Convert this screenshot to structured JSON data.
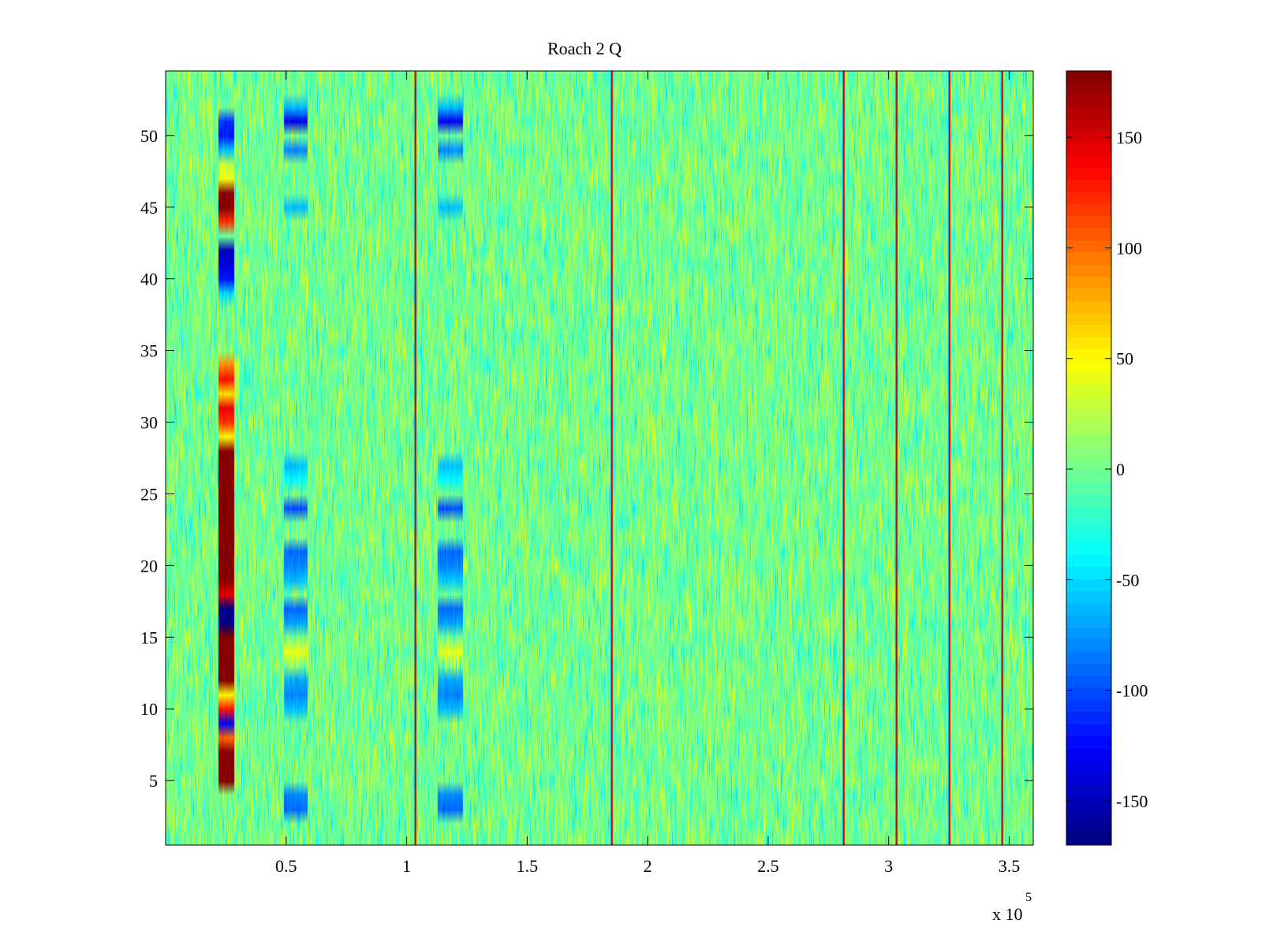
{
  "chart_data": {
    "type": "heatmap",
    "title": "Roach 2 Q",
    "xlabel": "",
    "ylabel": "",
    "x_multiplier_label": "x 10",
    "x_multiplier_exponent": "5",
    "xlim": [
      0,
      360000
    ],
    "ylim": [
      0.5,
      54.5
    ],
    "rows": 54,
    "x_ticks": [
      {
        "value": 0.5,
        "label": "0.5"
      },
      {
        "value": 1,
        "label": "1"
      },
      {
        "value": 1.5,
        "label": "1.5"
      },
      {
        "value": 2,
        "label": "2"
      },
      {
        "value": 2.5,
        "label": "2.5"
      },
      {
        "value": 3,
        "label": "3"
      },
      {
        "value": 3.5,
        "label": "3.5"
      }
    ],
    "y_ticks": [
      {
        "value": 5,
        "label": "5"
      },
      {
        "value": 10,
        "label": "10"
      },
      {
        "value": 15,
        "label": "15"
      },
      {
        "value": 20,
        "label": "20"
      },
      {
        "value": 25,
        "label": "25"
      },
      {
        "value": 30,
        "label": "30"
      },
      {
        "value": 35,
        "label": "35"
      },
      {
        "value": 40,
        "label": "40"
      },
      {
        "value": 45,
        "label": "45"
      },
      {
        "value": 50,
        "label": "50"
      }
    ],
    "colorbar": {
      "colormap": "jet",
      "range": [
        -170,
        180
      ],
      "ticks": [
        {
          "value": 150,
          "label": "150"
        },
        {
          "value": 100,
          "label": "100"
        },
        {
          "value": 50,
          "label": "50"
        },
        {
          "value": 0,
          "label": "0"
        },
        {
          "value": -50,
          "label": "-50"
        },
        {
          "value": -100,
          "label": "-100"
        },
        {
          "value": -150,
          "label": "-150"
        }
      ]
    },
    "background": {
      "value_range": [
        -40,
        40
      ]
    },
    "vertical_lines_x": [
      103500,
      185000,
      281000,
      303000,
      325000,
      347000
    ],
    "column_stripes": [
      {
        "x_range": [
          22000,
          28500
        ],
        "rows": {
          "51": -110,
          "50": -120,
          "49": -60,
          "48": 30,
          "47": 40,
          "46": 180,
          "45": 180,
          "44": 120,
          "43": 0,
          "42": -150,
          "41": -140,
          "40": -120,
          "39": -50,
          "34": 90,
          "33": 130,
          "32": 60,
          "31": 140,
          "30": 120,
          "29": 50,
          "28": 180,
          "27": 180,
          "26": 180,
          "25": 180,
          "24": 180,
          "23": 180,
          "22": 180,
          "21": 180,
          "20": 180,
          "19": 180,
          "18": 150,
          "17": -170,
          "16": -170,
          "15": 180,
          "14": 180,
          "13": 180,
          "12": 180,
          "11": 50,
          "10": 130,
          "9": -130,
          "8": 100,
          "7": 180,
          "6": 180,
          "5": 180
        }
      },
      {
        "x_range": [
          49000,
          59000
        ],
        "rows": {
          "52": -60,
          "51": -130,
          "49": -80,
          "45": -60,
          "27": -60,
          "26": -40,
          "24": -100,
          "21": -90,
          "20": -80,
          "19": -60,
          "17": -90,
          "16": -70,
          "14": 40,
          "12": -70,
          "11": -80,
          "10": -60,
          "4": -80,
          "3": -90
        }
      },
      {
        "x_range": [
          113000,
          123500
        ],
        "rows": {
          "52": -60,
          "51": -130,
          "49": -80,
          "45": -60,
          "27": -60,
          "26": -40,
          "24": -100,
          "21": -90,
          "20": -80,
          "19": -60,
          "17": -90,
          "16": -70,
          "14": 40,
          "12": -70,
          "11": -80,
          "10": -60,
          "4": -80,
          "3": -90
        }
      }
    ]
  }
}
